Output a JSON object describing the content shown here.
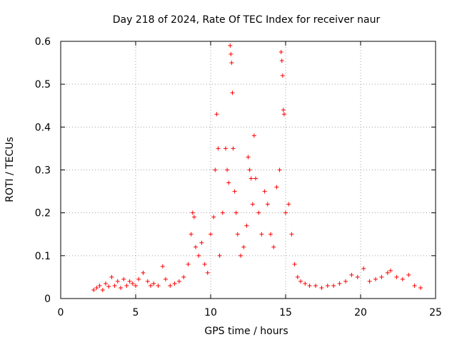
{
  "chart_data": {
    "type": "scatter",
    "title": "Day 218 of 2024, Rate Of TEC Index for receiver naur",
    "xlabel": "GPS time / hours",
    "ylabel": "ROTI / TECUs",
    "xlim": [
      0,
      25
    ],
    "ylim": [
      0,
      0.6
    ],
    "xticks": [
      "0",
      "5",
      "10",
      "15",
      "20",
      "25"
    ],
    "yticks": [
      "0",
      "0.1",
      "0.2",
      "0.3",
      "0.4",
      "0.5",
      "0.6"
    ],
    "grid": true,
    "marker": "+",
    "color": "#ff0000",
    "series": [
      {
        "points": [
          [
            2.2,
            0.02
          ],
          [
            2.4,
            0.025
          ],
          [
            2.6,
            0.03
          ],
          [
            2.8,
            0.02
          ],
          [
            3.0,
            0.035
          ],
          [
            3.2,
            0.028
          ],
          [
            3.4,
            0.05
          ],
          [
            3.6,
            0.03
          ],
          [
            3.8,
            0.04
          ],
          [
            4.0,
            0.025
          ],
          [
            4.2,
            0.045
          ],
          [
            4.4,
            0.03
          ],
          [
            4.6,
            0.04
          ],
          [
            4.8,
            0.035
          ],
          [
            5.0,
            0.03
          ],
          [
            5.2,
            0.045
          ],
          [
            5.5,
            0.06
          ],
          [
            5.8,
            0.04
          ],
          [
            6.0,
            0.03
          ],
          [
            6.2,
            0.035
          ],
          [
            6.5,
            0.03
          ],
          [
            6.8,
            0.075
          ],
          [
            7.0,
            0.045
          ],
          [
            7.3,
            0.03
          ],
          [
            7.6,
            0.035
          ],
          [
            7.9,
            0.04
          ],
          [
            8.2,
            0.05
          ],
          [
            8.5,
            0.08
          ],
          [
            8.7,
            0.15
          ],
          [
            8.8,
            0.2
          ],
          [
            8.9,
            0.19
          ],
          [
            9.0,
            0.12
          ],
          [
            9.2,
            0.1
          ],
          [
            9.4,
            0.13
          ],
          [
            9.6,
            0.08
          ],
          [
            9.8,
            0.06
          ],
          [
            10.0,
            0.15
          ],
          [
            10.2,
            0.19
          ],
          [
            10.3,
            0.3
          ],
          [
            10.4,
            0.43
          ],
          [
            10.5,
            0.35
          ],
          [
            10.6,
            0.1
          ],
          [
            10.8,
            0.2
          ],
          [
            11.0,
            0.35
          ],
          [
            11.1,
            0.3
          ],
          [
            11.2,
            0.27
          ],
          [
            11.3,
            0.59
          ],
          [
            11.35,
            0.57
          ],
          [
            11.4,
            0.55
          ],
          [
            11.45,
            0.48
          ],
          [
            11.5,
            0.35
          ],
          [
            11.6,
            0.25
          ],
          [
            11.7,
            0.2
          ],
          [
            11.8,
            0.15
          ],
          [
            12.0,
            0.1
          ],
          [
            12.2,
            0.12
          ],
          [
            12.4,
            0.17
          ],
          [
            12.5,
            0.33
          ],
          [
            12.6,
            0.3
          ],
          [
            12.7,
            0.28
          ],
          [
            12.8,
            0.22
          ],
          [
            12.9,
            0.38
          ],
          [
            13.0,
            0.28
          ],
          [
            13.2,
            0.2
          ],
          [
            13.4,
            0.15
          ],
          [
            13.6,
            0.25
          ],
          [
            13.8,
            0.22
          ],
          [
            14.0,
            0.15
          ],
          [
            14.2,
            0.12
          ],
          [
            14.4,
            0.26
          ],
          [
            14.6,
            0.3
          ],
          [
            14.7,
            0.575
          ],
          [
            14.75,
            0.555
          ],
          [
            14.8,
            0.52
          ],
          [
            14.85,
            0.44
          ],
          [
            14.9,
            0.43
          ],
          [
            15.0,
            0.2
          ],
          [
            15.2,
            0.22
          ],
          [
            15.4,
            0.15
          ],
          [
            15.6,
            0.08
          ],
          [
            15.8,
            0.05
          ],
          [
            16.0,
            0.04
          ],
          [
            16.3,
            0.035
          ],
          [
            16.6,
            0.03
          ],
          [
            17.0,
            0.03
          ],
          [
            17.4,
            0.025
          ],
          [
            17.8,
            0.03
          ],
          [
            18.2,
            0.03
          ],
          [
            18.6,
            0.035
          ],
          [
            19.0,
            0.04
          ],
          [
            19.4,
            0.055
          ],
          [
            19.8,
            0.05
          ],
          [
            20.2,
            0.07
          ],
          [
            20.6,
            0.04
          ],
          [
            21.0,
            0.045
          ],
          [
            21.4,
            0.05
          ],
          [
            21.8,
            0.06
          ],
          [
            22.0,
            0.065
          ],
          [
            22.4,
            0.05
          ],
          [
            22.8,
            0.045
          ],
          [
            23.2,
            0.055
          ],
          [
            23.6,
            0.03
          ],
          [
            24.0,
            0.025
          ]
        ]
      }
    ]
  }
}
